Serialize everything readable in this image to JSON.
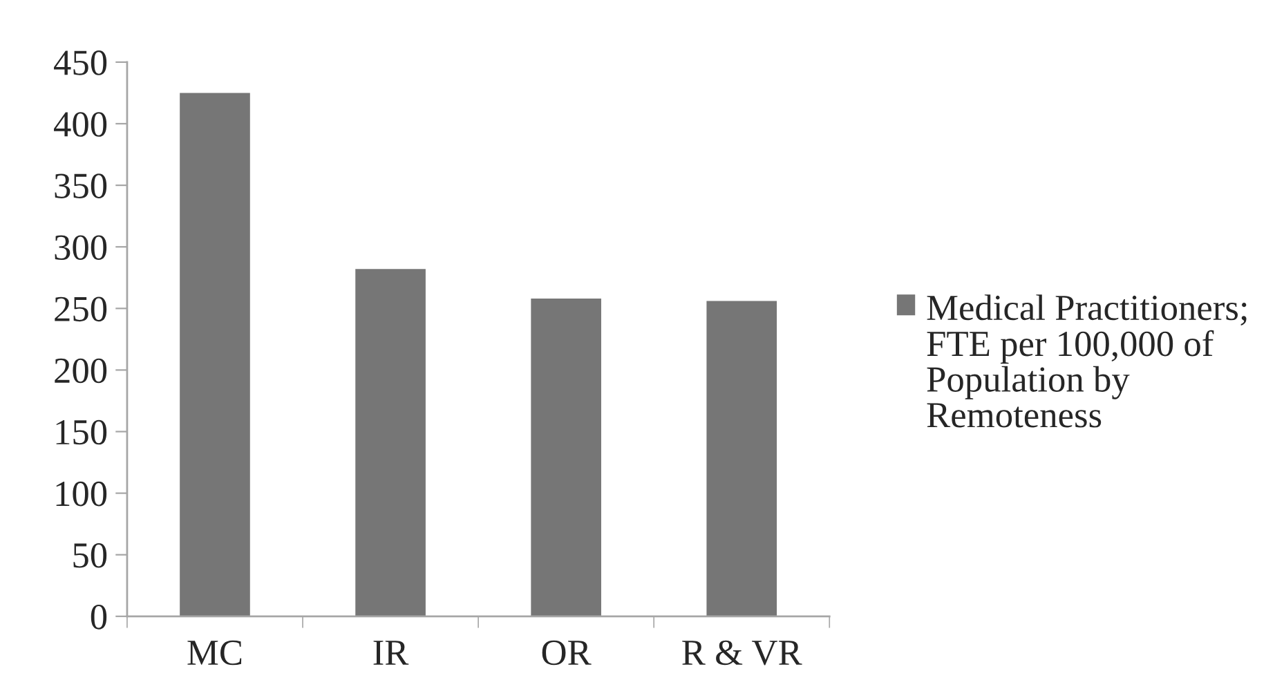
{
  "chart_data": {
    "type": "bar",
    "categories": [
      "MC",
      "IR",
      "OR",
      "R & VR"
    ],
    "series": [
      {
        "name": "Medical Practitioners; FTE per 100,000 of Population by Remoteness",
        "color": "#767676",
        "values": [
          425,
          282,
          258,
          256
        ]
      }
    ],
    "ylim": [
      0,
      450
    ],
    "yticks": [
      0,
      50,
      100,
      150,
      200,
      250,
      300,
      350,
      400,
      450
    ],
    "grid": false,
    "legend": "right"
  }
}
